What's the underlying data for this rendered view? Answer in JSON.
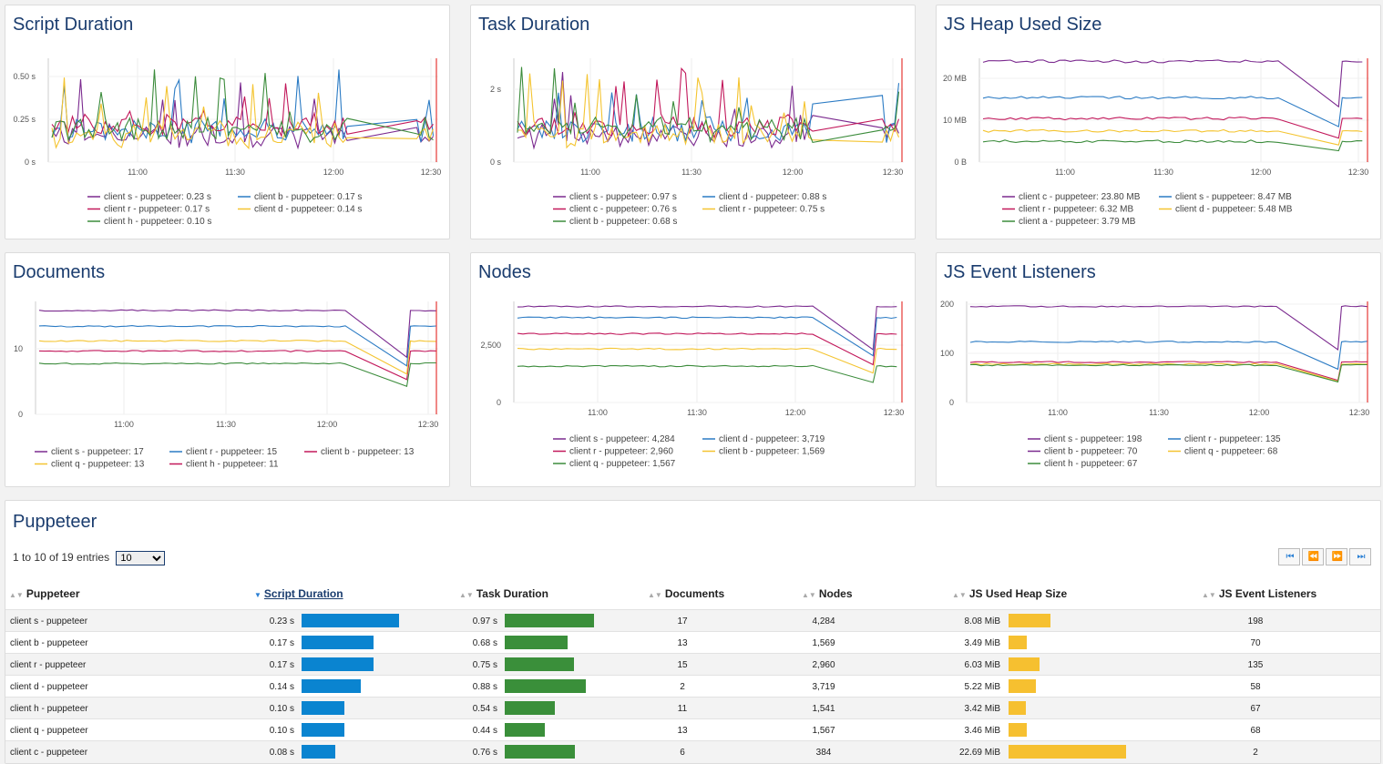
{
  "colors": {
    "purple": "#7b2a8f",
    "blue": "#2b7bc4",
    "crimson": "#c2185b",
    "yellow": "#f4c430",
    "green": "#3c8c3c",
    "red": "#e53935",
    "bar_blue": "#0a84d0",
    "bar_green": "#3a8f3a",
    "bar_yellow": "#f6c030"
  },
  "charts": [
    {
      "title": "Script Duration",
      "x_ticks": [
        "11:00",
        "11:30",
        "12:00",
        "12:30"
      ],
      "y_ticks": [
        "0 s",
        "0.25 s",
        "0.50 s"
      ],
      "legend": [
        [
          "client s - puppeteer: 0.23 s",
          "client b - puppeteer: 0.17 s"
        ],
        [
          "client r - puppeteer: 0.17 s",
          "client d - puppeteer: 0.14 s"
        ],
        [
          "client h - puppeteer: 0.10 s"
        ]
      ]
    },
    {
      "title": "Task Duration",
      "x_ticks": [
        "11:00",
        "11:30",
        "12:00",
        "12:30"
      ],
      "y_ticks": [
        "0 s",
        "2 s"
      ],
      "legend": [
        [
          "client s - puppeteer: 0.97 s",
          "client d - puppeteer: 0.88 s"
        ],
        [
          "client c - puppeteer: 0.76 s",
          "client r - puppeteer: 0.75 s"
        ],
        [
          "client b - puppeteer: 0.68 s"
        ]
      ]
    },
    {
      "title": "JS Heap Used Size",
      "x_ticks": [
        "11:00",
        "11:30",
        "12:00",
        "12:30"
      ],
      "y_ticks": [
        "0 B",
        "10 MB",
        "20 MB"
      ],
      "legend": [
        [
          "client c - puppeteer: 23.80 MB",
          "client s - puppeteer: 8.47 MB"
        ],
        [
          "client r - puppeteer: 6.32 MB",
          "client d - puppeteer: 5.48 MB"
        ],
        [
          "client a - puppeteer: 3.79 MB"
        ]
      ]
    },
    {
      "title": "Documents",
      "x_ticks": [
        "11:00",
        "11:30",
        "12:00",
        "12:30"
      ],
      "y_ticks": [
        "0",
        "10"
      ],
      "legend": [
        [
          "client s - puppeteer: 17",
          "client r - puppeteer: 15",
          "client b - puppeteer: 13"
        ],
        [
          "client q - puppeteer: 13",
          "client h - puppeteer: 11"
        ]
      ]
    },
    {
      "title": "Nodes",
      "x_ticks": [
        "11:00",
        "11:30",
        "12:00",
        "12:30"
      ],
      "y_ticks": [
        "0",
        "2,500"
      ],
      "legend": [
        [
          "client s - puppeteer: 4,284",
          "client d - puppeteer: 3,719"
        ],
        [
          "client r - puppeteer: 2,960",
          "client b - puppeteer: 1,569"
        ],
        [
          "client q - puppeteer: 1,567"
        ]
      ]
    },
    {
      "title": "JS Event Listeners",
      "x_ticks": [
        "11:00",
        "11:30",
        "12:00",
        "12:30"
      ],
      "y_ticks": [
        "0",
        "100",
        "200"
      ],
      "legend": [
        [
          "client s - puppeteer: 198",
          "client r - puppeteer: 135"
        ],
        [
          "client b - puppeteer: 70",
          "client q - puppeteer: 68"
        ],
        [
          "client h - puppeteer: 67"
        ]
      ]
    }
  ],
  "table": {
    "title": "Puppeteer",
    "entries_text": "1 to 10 of 19 entries",
    "page_size": "10",
    "pager": [
      "⏮",
      "⏪",
      "⏩",
      "⏭"
    ],
    "headers": [
      "Puppeteer",
      "Script Duration",
      "Task Duration",
      "Documents",
      "Nodes",
      "JS Used Heap Size",
      "JS Event Listeners"
    ],
    "rows": [
      {
        "name": "client s - puppeteer",
        "script": "0.23 s",
        "script_v": 0.23,
        "task": "0.97 s",
        "task_v": 0.97,
        "docs": "17",
        "nodes": "4,284",
        "heap": "8.08 MiB",
        "heap_v": 8.08,
        "listeners": "198"
      },
      {
        "name": "client b - puppeteer",
        "script": "0.17 s",
        "script_v": 0.17,
        "task": "0.68 s",
        "task_v": 0.68,
        "docs": "13",
        "nodes": "1,569",
        "heap": "3.49 MiB",
        "heap_v": 3.49,
        "listeners": "70"
      },
      {
        "name": "client r - puppeteer",
        "script": "0.17 s",
        "script_v": 0.17,
        "task": "0.75 s",
        "task_v": 0.75,
        "docs": "15",
        "nodes": "2,960",
        "heap": "6.03 MiB",
        "heap_v": 6.03,
        "listeners": "135"
      },
      {
        "name": "client d - puppeteer",
        "script": "0.14 s",
        "script_v": 0.14,
        "task": "0.88 s",
        "task_v": 0.88,
        "docs": "2",
        "nodes": "3,719",
        "heap": "5.22 MiB",
        "heap_v": 5.22,
        "listeners": "58"
      },
      {
        "name": "client h - puppeteer",
        "script": "0.10 s",
        "script_v": 0.1,
        "task": "0.54 s",
        "task_v": 0.54,
        "docs": "11",
        "nodes": "1,541",
        "heap": "3.42 MiB",
        "heap_v": 3.42,
        "listeners": "67"
      },
      {
        "name": "client q - puppeteer",
        "script": "0.10 s",
        "script_v": 0.1,
        "task": "0.44 s",
        "task_v": 0.44,
        "docs": "13",
        "nodes": "1,567",
        "heap": "3.46 MiB",
        "heap_v": 3.46,
        "listeners": "68"
      },
      {
        "name": "client c - puppeteer",
        "script": "0.08 s",
        "script_v": 0.08,
        "task": "0.76 s",
        "task_v": 0.76,
        "docs": "6",
        "nodes": "384",
        "heap": "22.69 MiB",
        "heap_v": 22.69,
        "listeners": "2"
      }
    ]
  }
}
